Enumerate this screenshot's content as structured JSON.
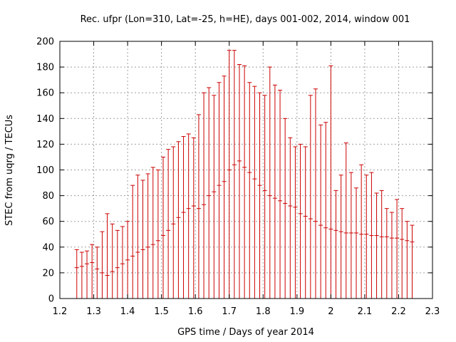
{
  "chart_data": {
    "type": "scatter",
    "title": "Rec. ufpr (Lon=310, Lat=-25, h=HE), days 001-002, 2014, window 001",
    "xlabel": "GPS time / Days of year 2014",
    "ylabel": "STEC from uqrg / TECUs",
    "xlim": [
      1.2,
      2.3
    ],
    "ylim": [
      0,
      200
    ],
    "xticks": [
      1.2,
      1.3,
      1.4,
      1.5,
      1.6,
      1.7,
      1.8,
      1.9,
      2.0,
      2.1,
      2.2,
      2.3
    ],
    "xtick_labels": [
      "1.2",
      "1.3",
      "1.4",
      "1.5",
      "1.6",
      "1.7",
      "1.8",
      "1.9",
      "2",
      "2.1",
      "2.2",
      "2.3"
    ],
    "yticks": [
      0,
      20,
      40,
      60,
      80,
      100,
      120,
      140,
      160,
      180,
      200
    ],
    "ytick_labels": [
      "0",
      "20",
      "40",
      "60",
      "80",
      "100",
      "120",
      "140",
      "160",
      "180",
      "200"
    ],
    "grid": true,
    "color": "#cc0000",
    "series": [
      {
        "name": "STEC with error bars",
        "x": [
          1.25,
          1.265,
          1.28,
          1.295,
          1.31,
          1.325,
          1.34,
          1.355,
          1.37,
          1.385,
          1.4,
          1.415,
          1.43,
          1.445,
          1.46,
          1.475,
          1.49,
          1.505,
          1.52,
          1.535,
          1.55,
          1.565,
          1.58,
          1.595,
          1.61,
          1.625,
          1.64,
          1.655,
          1.67,
          1.685,
          1.7,
          1.715,
          1.73,
          1.745,
          1.76,
          1.775,
          1.79,
          1.805,
          1.82,
          1.835,
          1.85,
          1.865,
          1.88,
          1.895,
          1.91,
          1.925,
          1.94,
          1.955,
          1.97,
          1.985,
          2.0,
          2.015,
          2.03,
          2.045,
          2.06,
          2.075,
          2.09,
          2.105,
          2.12,
          2.135,
          2.15,
          2.165,
          2.18,
          2.195,
          2.21,
          2.225,
          2.24
        ],
        "y": [
          24,
          25,
          27,
          28,
          23,
          20,
          18,
          21,
          24,
          27,
          30,
          33,
          36,
          38,
          40,
          42,
          45,
          49,
          53,
          58,
          63,
          67,
          70,
          72,
          70,
          73,
          80,
          83,
          88,
          91,
          100,
          104,
          107,
          102,
          98,
          93,
          88,
          84,
          80,
          78,
          76,
          74,
          72,
          71,
          66,
          64,
          62,
          60,
          57,
          55,
          54,
          53,
          52,
          51,
          51,
          51,
          50,
          50,
          49,
          49,
          48,
          48,
          47,
          47,
          46,
          45,
          44
        ],
        "y_high": [
          38,
          36,
          37,
          42,
          40,
          52,
          66,
          58,
          53,
          56,
          60,
          88,
          96,
          92,
          97,
          102,
          100,
          110,
          116,
          118,
          122,
          126,
          128,
          125,
          143,
          160,
          164,
          158,
          168,
          173,
          193,
          193,
          182,
          181,
          168,
          165,
          160,
          158,
          180,
          166,
          162,
          140,
          125,
          118,
          120,
          118,
          158,
          163,
          135,
          137,
          181,
          84,
          96,
          121,
          98,
          86,
          104,
          96,
          98,
          82,
          84,
          70,
          67,
          77,
          70,
          60,
          57
        ],
        "y_low": [
          0,
          0,
          0,
          0,
          0,
          0,
          0,
          0,
          0,
          0,
          0,
          0,
          0,
          0,
          0,
          0,
          0,
          0,
          0,
          0,
          0,
          0,
          0,
          0,
          0,
          0,
          0,
          0,
          0,
          0,
          0,
          0,
          0,
          0,
          0,
          0,
          0,
          0,
          0,
          0,
          0,
          0,
          0,
          0,
          0,
          0,
          0,
          0,
          0,
          0,
          0,
          0,
          0,
          0,
          0,
          0,
          0,
          0,
          0,
          0,
          0,
          0,
          0,
          0,
          0,
          0,
          0
        ]
      }
    ]
  }
}
